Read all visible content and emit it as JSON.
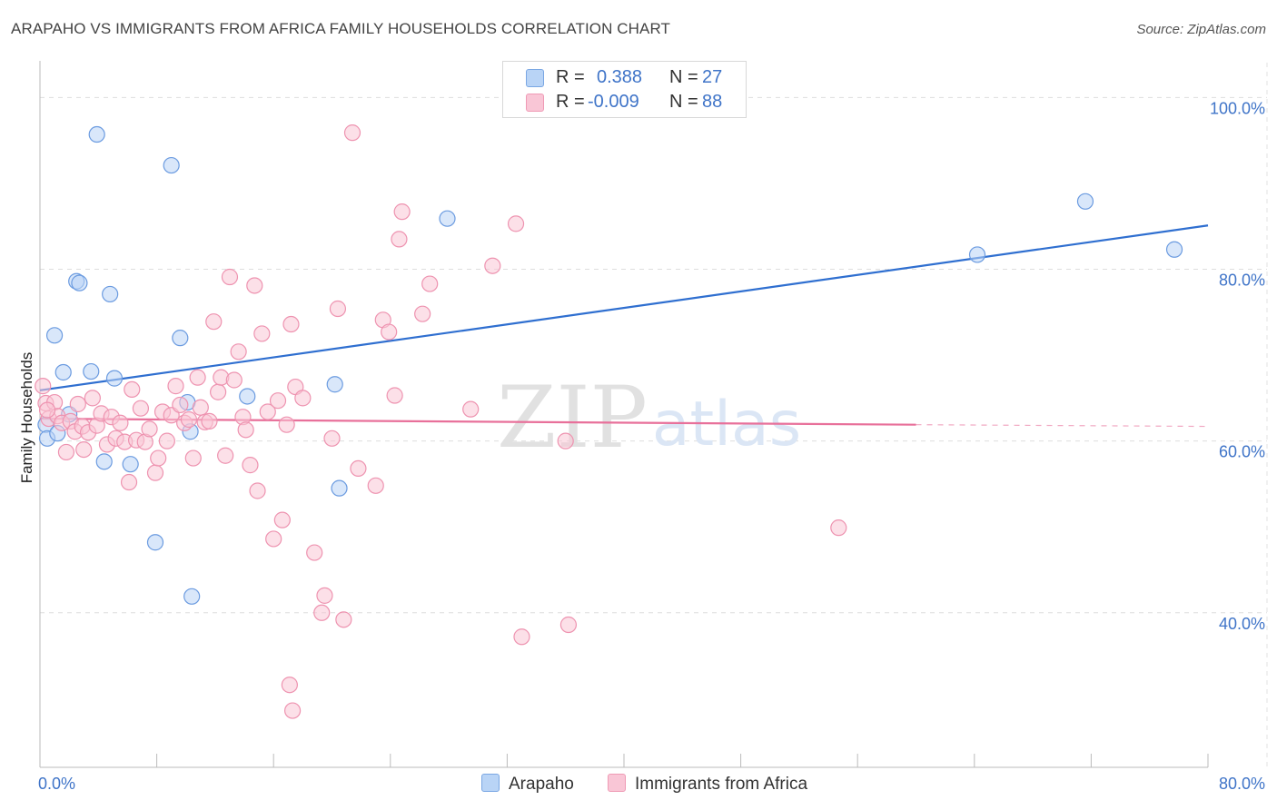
{
  "title": "ARAPAHO VS IMMIGRANTS FROM AFRICA FAMILY HOUSEHOLDS CORRELATION CHART",
  "source": "Source: ZipAtlas.com",
  "watermark": {
    "zip": "ZIP",
    "atlas": "atlas"
  },
  "legend": {
    "rows": [
      {
        "r_label": "R =",
        "r_value": "0.388",
        "n_label": "N =",
        "n_value": "27"
      },
      {
        "r_label": "R =",
        "r_value": "-0.009",
        "n_label": "N =",
        "n_value": "88"
      }
    ]
  },
  "bottom_legend": {
    "series1": "Arapaho",
    "series2": "Immigrants from Africa"
  },
  "colors": {
    "blue_fill": "#b9d4f6",
    "blue_stroke": "#6b9be0",
    "blue_line": "#2f6fd0",
    "pink_fill": "#f9c6d6",
    "pink_stroke": "#ee93b0",
    "pink_line": "#e8709a",
    "tick_label": "#3f74c8"
  },
  "chart_data": {
    "type": "scatter",
    "title": "ARAPAHO VS IMMIGRANTS FROM AFRICA FAMILY HOUSEHOLDS CORRELATION CHART",
    "xlabel": "",
    "ylabel": "Family Households",
    "xlim": [
      0,
      80
    ],
    "ylim": [
      22,
      103
    ],
    "x_tick_labels": [
      {
        "value": 0,
        "label": "0.0%"
      },
      {
        "value": 80,
        "label": "80.0%"
      }
    ],
    "y_tick_labels": [
      {
        "value": 100,
        "label": "100.0%"
      },
      {
        "value": 80,
        "label": "80.0%"
      },
      {
        "value": 60,
        "label": "60.0%"
      },
      {
        "value": 40,
        "label": "40.0%"
      }
    ],
    "series": [
      {
        "name": "Arapaho",
        "color": "blue",
        "trend": {
          "x0": 0,
          "y0": 65.9,
          "x1": 80,
          "y1": 85.1
        },
        "points": [
          [
            0.4,
            61.9
          ],
          [
            0.5,
            60.3
          ],
          [
            1.0,
            72.3
          ],
          [
            1.2,
            60.9
          ],
          [
            1.6,
            68.0
          ],
          [
            2.0,
            63.1
          ],
          [
            2.5,
            78.6
          ],
          [
            2.7,
            78.4
          ],
          [
            3.5,
            68.1
          ],
          [
            3.9,
            95.7
          ],
          [
            4.4,
            57.6
          ],
          [
            4.8,
            77.1
          ],
          [
            5.1,
            67.3
          ],
          [
            6.2,
            57.3
          ],
          [
            7.9,
            48.2
          ],
          [
            9.0,
            92.1
          ],
          [
            9.6,
            72.0
          ],
          [
            10.1,
            64.5
          ],
          [
            10.3,
            61.1
          ],
          [
            10.4,
            41.9
          ],
          [
            14.2,
            65.2
          ],
          [
            20.2,
            66.6
          ],
          [
            20.5,
            54.5
          ],
          [
            27.9,
            85.9
          ],
          [
            64.2,
            81.7
          ],
          [
            71.6,
            87.9
          ],
          [
            77.7,
            82.3
          ]
        ]
      },
      {
        "name": "Immigrants from Africa",
        "color": "pink",
        "trend": {
          "x0": 0,
          "y0": 62.6,
          "x1": 60,
          "y1": 61.9,
          "dash_to_x": 80,
          "dash_to_y": 61.7
        },
        "points": [
          [
            0.2,
            66.4
          ],
          [
            0.4,
            64.4
          ],
          [
            0.6,
            62.6
          ],
          [
            1.0,
            64.5
          ],
          [
            1.2,
            62.9
          ],
          [
            1.5,
            62.1
          ],
          [
            1.8,
            58.7
          ],
          [
            2.1,
            62.3
          ],
          [
            2.4,
            61.1
          ],
          [
            2.6,
            64.3
          ],
          [
            2.9,
            61.7
          ],
          [
            3.0,
            59.0
          ],
          [
            3.3,
            61.0
          ],
          [
            3.6,
            65.0
          ],
          [
            3.9,
            61.8
          ],
          [
            4.2,
            63.2
          ],
          [
            4.6,
            59.6
          ],
          [
            4.9,
            62.8
          ],
          [
            5.2,
            60.3
          ],
          [
            5.5,
            62.1
          ],
          [
            5.8,
            59.9
          ],
          [
            6.1,
            55.2
          ],
          [
            6.3,
            66.0
          ],
          [
            6.6,
            60.1
          ],
          [
            6.9,
            63.8
          ],
          [
            7.2,
            59.9
          ],
          [
            7.5,
            61.4
          ],
          [
            7.9,
            56.3
          ],
          [
            8.1,
            58.0
          ],
          [
            8.4,
            63.4
          ],
          [
            8.7,
            60.0
          ],
          [
            9.0,
            63.0
          ],
          [
            9.3,
            66.4
          ],
          [
            9.6,
            64.2
          ],
          [
            9.9,
            62.1
          ],
          [
            10.2,
            62.5
          ],
          [
            10.5,
            58.0
          ],
          [
            10.8,
            67.4
          ],
          [
            11.0,
            63.9
          ],
          [
            11.3,
            62.2
          ],
          [
            11.6,
            62.3
          ],
          [
            11.9,
            73.9
          ],
          [
            12.2,
            65.7
          ],
          [
            12.4,
            67.4
          ],
          [
            12.7,
            58.3
          ],
          [
            13.0,
            79.1
          ],
          [
            13.3,
            67.1
          ],
          [
            13.6,
            70.4
          ],
          [
            13.9,
            62.8
          ],
          [
            14.1,
            61.3
          ],
          [
            14.4,
            57.2
          ],
          [
            14.7,
            78.1
          ],
          [
            14.9,
            54.2
          ],
          [
            15.2,
            72.5
          ],
          [
            15.6,
            63.4
          ],
          [
            16.0,
            48.6
          ],
          [
            16.3,
            64.7
          ],
          [
            16.6,
            50.8
          ],
          [
            16.9,
            61.9
          ],
          [
            17.2,
            73.6
          ],
          [
            17.5,
            66.3
          ],
          [
            18.0,
            65.0
          ],
          [
            17.1,
            31.6
          ],
          [
            17.3,
            28.6
          ],
          [
            18.8,
            47.0
          ],
          [
            19.3,
            40.0
          ],
          [
            19.5,
            42.0
          ],
          [
            20.0,
            60.3
          ],
          [
            20.4,
            75.4
          ],
          [
            20.8,
            39.2
          ],
          [
            21.4,
            95.9
          ],
          [
            21.8,
            56.8
          ],
          [
            23.0,
            54.8
          ],
          [
            23.5,
            74.1
          ],
          [
            23.9,
            72.7
          ],
          [
            24.3,
            65.3
          ],
          [
            24.6,
            83.5
          ],
          [
            24.8,
            86.7
          ],
          [
            26.2,
            74.8
          ],
          [
            26.7,
            78.3
          ],
          [
            29.5,
            63.7
          ],
          [
            31.0,
            80.4
          ],
          [
            33.0,
            37.2
          ],
          [
            32.6,
            85.3
          ],
          [
            36.0,
            60.0
          ],
          [
            36.2,
            38.6
          ],
          [
            54.7,
            49.9
          ],
          [
            0.5,
            63.6
          ]
        ]
      }
    ]
  }
}
